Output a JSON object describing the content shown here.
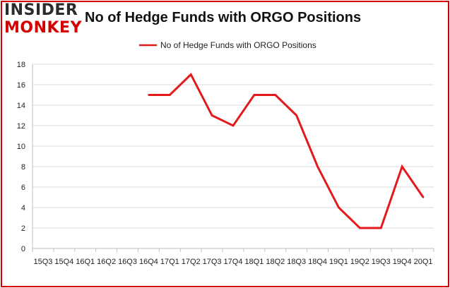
{
  "logo": {
    "line1": "INSIDER",
    "line2": "MONKEY"
  },
  "colors": {
    "accent": "#d40000",
    "grid": "#d9d9d9",
    "axis": "#bfbfbf",
    "text": "#222222"
  },
  "chart_data": {
    "type": "line",
    "title": "No of Hedge Funds with ORGO Positions",
    "xlabel": "",
    "ylabel": "",
    "ylim": [
      0,
      18
    ],
    "yticks": [
      0,
      2,
      4,
      6,
      8,
      10,
      12,
      14,
      16,
      18
    ],
    "grid": true,
    "legend": "top-center",
    "categories": [
      "2015Q3",
      "2015Q4",
      "2016Q1",
      "2016Q2",
      "2016Q3",
      "2016Q4",
      "2017Q1",
      "2017Q2",
      "2017Q3",
      "2017Q4",
      "2018Q1",
      "2018Q2",
      "2018Q3",
      "2018Q4",
      "2019Q1",
      "2019Q2",
      "2019Q3",
      "2019Q4",
      "2020Q1"
    ],
    "tick_labels": [
      "15Q3",
      "15Q4",
      "16Q1",
      "16Q2",
      "16Q3",
      "16Q4",
      "17Q1",
      "17Q2",
      "17Q3",
      "17Q4",
      "18Q1",
      "18Q2",
      "18Q3",
      "18Q4",
      "19Q1",
      "19Q2",
      "19Q3",
      "19Q4",
      "20Q1"
    ],
    "series": [
      {
        "name": "No of Hedge Funds with ORGO Positions",
        "color": "#e31a1c",
        "values": [
          null,
          null,
          null,
          null,
          null,
          15,
          15,
          17,
          13,
          12,
          15,
          15,
          13,
          8,
          4,
          2,
          2,
          8,
          5
        ]
      }
    ]
  }
}
